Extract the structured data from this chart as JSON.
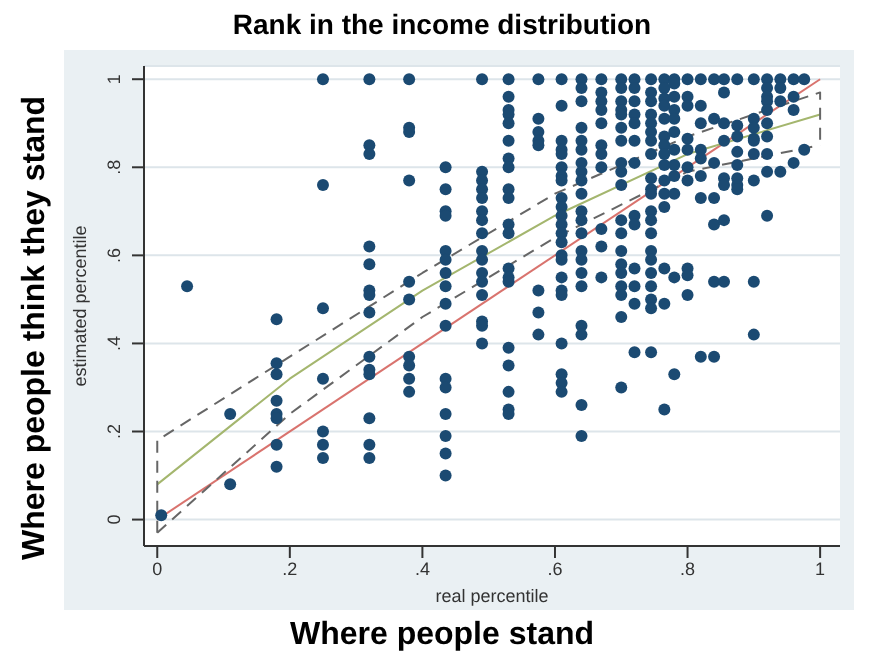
{
  "chart_data": {
    "type": "scatter",
    "title": "Rank in the income distribution",
    "xlabel": "real percentile",
    "ylabel": "estimated percentile",
    "annotations": [
      "Where people stand",
      "Where people think they stand"
    ],
    "xlim": [
      -0.02,
      1.03
    ],
    "ylim": [
      -0.06,
      1.03
    ],
    "xticks": [
      0,
      {
        "value": 0.2,
        "label": ".2"
      },
      {
        "value": 0.4,
        "label": ".4"
      },
      {
        "value": 0.6,
        "label": ".6"
      },
      {
        "value": 0.8,
        "label": ".8"
      },
      1
    ],
    "yticks": [
      0,
      {
        "value": 0.2,
        "label": ".2"
      },
      {
        "value": 0.4,
        "label": ".4"
      },
      {
        "value": 0.6,
        "label": ".6"
      },
      {
        "value": 0.8,
        "label": ".8"
      },
      1
    ],
    "grid": "y",
    "series": [
      {
        "color": "#1b4a72",
        "marker": "circle",
        "x": [
          0.006,
          0.045,
          0.11,
          0.11,
          0.18,
          0.18,
          0.18,
          0.18,
          0.18,
          0.18,
          0.18,
          0.18,
          0.25,
          0.25,
          0.25,
          0.25,
          0.25,
          0.25,
          0.25,
          0.32,
          0.32,
          0.32,
          0.32,
          0.32,
          0.32,
          0.32,
          0.32,
          0.32,
          0.32,
          0.32,
          0.32,
          0.32,
          0.32,
          0.38,
          0.38,
          0.38,
          0.38,
          0.38,
          0.38,
          0.38,
          0.38,
          0.38,
          0.38,
          0.435,
          0.435,
          0.435,
          0.435,
          0.435,
          0.435,
          0.435,
          0.435,
          0.435,
          0.435,
          0.435,
          0.435,
          0.435,
          0.435,
          0.435,
          0.435,
          0.49,
          0.49,
          0.49,
          0.49,
          0.49,
          0.49,
          0.49,
          0.49,
          0.49,
          0.49,
          0.49,
          0.49,
          0.49,
          0.49,
          0.49,
          0.49,
          0.53,
          0.53,
          0.53,
          0.53,
          0.53,
          0.53,
          0.53,
          0.53,
          0.53,
          0.53,
          0.53,
          0.53,
          0.53,
          0.53,
          0.53,
          0.53,
          0.53,
          0.53,
          0.53,
          0.53,
          0.575,
          0.575,
          0.575,
          0.575,
          0.575,
          0.575,
          0.575,
          0.575,
          0.61,
          0.61,
          0.61,
          0.61,
          0.61,
          0.61,
          0.61,
          0.61,
          0.61,
          0.61,
          0.61,
          0.61,
          0.61,
          0.61,
          0.61,
          0.61,
          0.61,
          0.61,
          0.61,
          0.61,
          0.61,
          0.61,
          0.61,
          0.64,
          0.64,
          0.64,
          0.64,
          0.64,
          0.64,
          0.64,
          0.64,
          0.64,
          0.64,
          0.64,
          0.64,
          0.64,
          0.64,
          0.64,
          0.64,
          0.64,
          0.64,
          0.64,
          0.64,
          0.64,
          0.67,
          0.67,
          0.67,
          0.67,
          0.67,
          0.67,
          0.67,
          0.67,
          0.67,
          0.67,
          0.67,
          0.7,
          0.7,
          0.7,
          0.7,
          0.7,
          0.7,
          0.7,
          0.7,
          0.7,
          0.7,
          0.7,
          0.7,
          0.7,
          0.7,
          0.7,
          0.7,
          0.7,
          0.7,
          0.7,
          0.72,
          0.72,
          0.72,
          0.72,
          0.72,
          0.72,
          0.72,
          0.72,
          0.72,
          0.72,
          0.72,
          0.72,
          0.72,
          0.745,
          0.745,
          0.745,
          0.745,
          0.745,
          0.745,
          0.745,
          0.745,
          0.745,
          0.745,
          0.745,
          0.745,
          0.745,
          0.745,
          0.745,
          0.745,
          0.745,
          0.745,
          0.745,
          0.745,
          0.745,
          0.765,
          0.765,
          0.765,
          0.765,
          0.765,
          0.765,
          0.765,
          0.765,
          0.765,
          0.765,
          0.765,
          0.765,
          0.765,
          0.765,
          0.765,
          0.78,
          0.78,
          0.78,
          0.78,
          0.78,
          0.78,
          0.78,
          0.78,
          0.78,
          0.78,
          0.78,
          0.78,
          0.8,
          0.8,
          0.8,
          0.8,
          0.8,
          0.8,
          0.8,
          0.8,
          0.8,
          0.8,
          0.82,
          0.82,
          0.82,
          0.82,
          0.82,
          0.82,
          0.82,
          0.82,
          0.84,
          0.84,
          0.84,
          0.84,
          0.84,
          0.84,
          0.84,
          0.855,
          0.855,
          0.855,
          0.855,
          0.855,
          0.855,
          0.855,
          0.855,
          0.875,
          0.875,
          0.875,
          0.875,
          0.875,
          0.875,
          0.875,
          0.875,
          0.9,
          0.9,
          0.9,
          0.9,
          0.9,
          0.9,
          0.9,
          0.9,
          0.9,
          0.92,
          0.92,
          0.92,
          0.92,
          0.92,
          0.92,
          0.92,
          0.92,
          0.92,
          0.92,
          0.94,
          0.94,
          0.94,
          0.94,
          0.96,
          0.96,
          0.96,
          0.96,
          0.976,
          0.976
        ],
        "values": [
          0.01,
          0.53,
          0.24,
          0.08,
          0.455,
          0.355,
          0.33,
          0.27,
          0.24,
          0.23,
          0.17,
          0.12,
          1.0,
          0.76,
          0.48,
          0.32,
          0.2,
          0.17,
          0.14,
          1.0,
          0.85,
          0.83,
          0.62,
          0.58,
          0.52,
          0.51,
          0.47,
          0.37,
          0.34,
          0.33,
          0.23,
          0.17,
          0.14,
          1.0,
          0.89,
          0.88,
          0.77,
          0.54,
          0.5,
          0.37,
          0.35,
          0.32,
          0.29,
          0.8,
          0.75,
          0.7,
          0.69,
          0.61,
          0.59,
          0.56,
          0.53,
          0.49,
          0.44,
          0.32,
          0.3,
          0.24,
          0.19,
          0.15,
          0.1,
          1.0,
          0.79,
          0.77,
          0.75,
          0.73,
          0.7,
          0.68,
          0.65,
          0.61,
          0.59,
          0.56,
          0.54,
          0.51,
          0.45,
          0.44,
          0.4,
          1.0,
          0.96,
          0.93,
          0.92,
          0.9,
          0.86,
          0.82,
          0.8,
          0.75,
          0.73,
          0.67,
          0.65,
          0.57,
          0.55,
          0.54,
          0.39,
          0.35,
          0.29,
          0.25,
          0.24,
          1.0,
          0.91,
          0.88,
          0.86,
          0.85,
          0.52,
          0.47,
          0.42,
          1.0,
          0.94,
          0.86,
          0.84,
          0.83,
          0.8,
          0.78,
          0.77,
          0.73,
          0.71,
          0.69,
          0.67,
          0.65,
          0.63,
          0.6,
          0.59,
          0.55,
          0.52,
          0.51,
          0.4,
          0.33,
          0.31,
          0.29,
          1.0,
          0.98,
          0.95,
          0.89,
          0.86,
          0.84,
          0.81,
          0.79,
          0.77,
          0.74,
          0.7,
          0.68,
          0.65,
          0.61,
          0.59,
          0.56,
          0.53,
          0.44,
          0.42,
          0.26,
          0.19,
          1.0,
          0.97,
          0.95,
          0.93,
          0.9,
          0.85,
          0.83,
          0.8,
          0.66,
          0.62,
          0.55,
          1.0,
          0.98,
          0.95,
          0.93,
          0.92,
          0.89,
          0.86,
          0.81,
          0.79,
          0.76,
          0.68,
          0.65,
          0.61,
          0.58,
          0.56,
          0.53,
          0.51,
          0.46,
          0.3,
          1.0,
          0.98,
          0.95,
          0.92,
          0.9,
          0.86,
          0.81,
          0.69,
          0.67,
          0.57,
          0.53,
          0.49,
          0.38,
          1.0,
          0.97,
          0.95,
          0.92,
          0.9,
          0.88,
          0.86,
          0.83,
          0.775,
          0.75,
          0.74,
          0.7,
          0.68,
          0.65,
          0.61,
          0.59,
          0.56,
          0.53,
          0.5,
          0.48,
          0.38,
          1.0,
          0.98,
          0.956,
          0.94,
          0.91,
          0.87,
          0.85,
          0.83,
          0.805,
          0.77,
          0.74,
          0.71,
          0.57,
          0.49,
          0.25,
          1.0,
          0.99,
          0.96,
          0.93,
          0.91,
          0.88,
          0.84,
          0.805,
          0.78,
          0.74,
          0.55,
          0.33,
          1.0,
          0.96,
          0.94,
          0.865,
          0.84,
          0.8,
          0.77,
          0.57,
          0.555,
          0.51,
          1.0,
          0.94,
          0.9,
          0.84,
          0.82,
          0.78,
          0.73,
          0.37,
          1.0,
          0.91,
          0.81,
          0.73,
          0.67,
          0.54,
          0.37,
          1.0,
          0.97,
          0.9,
          0.86,
          0.775,
          0.76,
          0.68,
          0.54,
          1.0,
          0.895,
          0.87,
          0.835,
          0.805,
          0.775,
          0.76,
          0.75,
          1.0,
          0.91,
          0.89,
          0.865,
          0.86,
          0.83,
          0.77,
          0.54,
          0.42,
          1.0,
          0.98,
          0.96,
          0.95,
          0.93,
          0.9,
          0.87,
          0.83,
          0.79,
          0.69,
          1.0,
          0.98,
          0.95,
          0.79,
          1.0,
          0.96,
          0.93,
          0.81,
          1.0,
          0.84
        ]
      },
      {
        "type": "line",
        "color": "#d9736e",
        "line_style": "solid",
        "x": [
          0,
          1
        ],
        "values": [
          0,
          1
        ]
      },
      {
        "type": "line",
        "color": "#a4b66e",
        "line_style": "solid",
        "x": [
          0,
          0.2,
          0.4,
          0.6,
          0.8,
          1
        ],
        "values": [
          0.08,
          0.32,
          0.52,
          0.69,
          0.83,
          0.92
        ]
      },
      {
        "type": "line",
        "color": "#666666",
        "line_style": "dashed",
        "x": [
          0,
          0,
          0.2,
          0.4,
          0.6,
          0.8,
          1,
          1
        ],
        "values": [
          -0.03,
          0.18,
          0.37,
          0.56,
          0.74,
          0.87,
          0.97,
          0.85
        ]
      },
      {
        "type": "line",
        "color": "#666666",
        "line_style": "dashed",
        "x": [
          0,
          0.2,
          0.4,
          0.6,
          0.8,
          1
        ],
        "values": [
          -0.03,
          0.24,
          0.46,
          0.64,
          0.79,
          0.85
        ]
      }
    ]
  }
}
